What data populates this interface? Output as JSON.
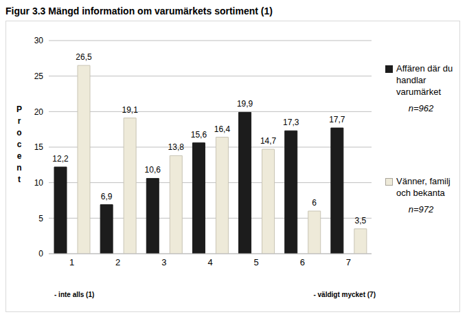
{
  "chart_data": {
    "type": "bar",
    "title": "Figur 3.3 Mängd information om varumärkets sortiment (1)",
    "y_label": "Procent",
    "categories": [
      "1",
      "2",
      "3",
      "4",
      "5",
      "6",
      "7"
    ],
    "annotations": [
      "- inte alls (1)",
      "- väldigt mycket (7)"
    ],
    "series": [
      {
        "name": "Affären där du handlar varumärket",
        "sample_size": "n=962",
        "color": "#1c1c1c",
        "values": [
          12.2,
          6.9,
          10.6,
          15.6,
          19.9,
          17.3,
          17.7
        ],
        "value_labels": [
          "12,2",
          "6,9",
          "10,6",
          "15,6",
          "19,9",
          "17,3",
          "17,7"
        ]
      },
      {
        "name": "Vänner, familj och bekanta",
        "sample_size": "n=972",
        "color": "#eeead9",
        "values": [
          26.5,
          19.1,
          13.8,
          16.4,
          14.7,
          6,
          3.5
        ],
        "value_labels": [
          "26,5",
          "19,1",
          "13,8",
          "16,4",
          "14,7",
          "6",
          "3,5"
        ]
      }
    ],
    "ylim": [
      0,
      30
    ],
    "yticks": [
      0,
      5,
      10,
      15,
      20,
      25,
      30
    ],
    "grid": true,
    "data_labels": true,
    "legend": "right"
  }
}
